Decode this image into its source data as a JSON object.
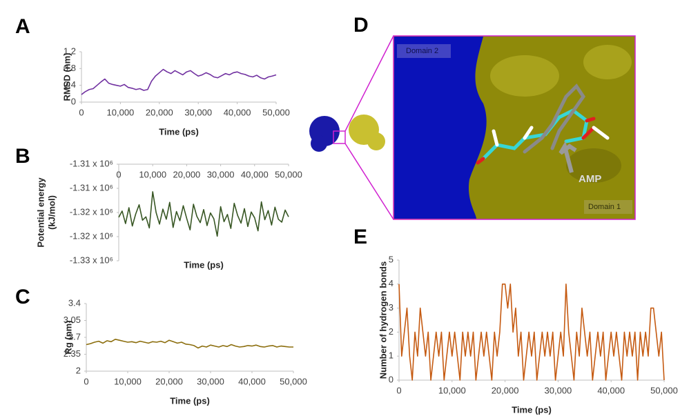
{
  "chart_data": [
    {
      "type": "line",
      "panel_label": "A",
      "ylabel": [
        "RMSD (nm)"
      ],
      "xlabel": "Time (ps)",
      "color": "#7030a0",
      "xlim": [
        0,
        50000
      ],
      "ylim": [
        0,
        1.2
      ],
      "yticks": [
        0,
        0.4,
        0.8,
        1.2
      ],
      "xticks": [
        0,
        {
          "value": 10000,
          "label": "10,000"
        },
        {
          "value": 20000,
          "label": "20,000"
        },
        {
          "value": 30000,
          "label": "30,000"
        },
        {
          "value": 40000,
          "label": "40,000"
        },
        {
          "value": 50000,
          "label": "50,000"
        }
      ],
      "x": [
        0,
        1000,
        2000,
        3000,
        4000,
        5000,
        6000,
        7000,
        8000,
        9000,
        10000,
        11000,
        12000,
        13000,
        14000,
        15000,
        16000,
        17000,
        18000,
        19000,
        20000,
        21000,
        22000,
        23000,
        24000,
        25000,
        26000,
        27000,
        28000,
        29000,
        30000,
        31000,
        32000,
        33000,
        34000,
        35000,
        36000,
        37000,
        38000,
        39000,
        40000,
        41000,
        42000,
        43000,
        44000,
        45000,
        46000,
        47000,
        48000,
        49000,
        50000
      ],
      "values": [
        0.18,
        0.25,
        0.3,
        0.32,
        0.4,
        0.48,
        0.55,
        0.45,
        0.42,
        0.4,
        0.38,
        0.42,
        0.35,
        0.33,
        0.3,
        0.32,
        0.28,
        0.3,
        0.5,
        0.62,
        0.7,
        0.78,
        0.72,
        0.68,
        0.75,
        0.7,
        0.65,
        0.72,
        0.75,
        0.68,
        0.62,
        0.65,
        0.7,
        0.66,
        0.6,
        0.58,
        0.63,
        0.68,
        0.65,
        0.7,
        0.72,
        0.68,
        0.66,
        0.62,
        0.6,
        0.64,
        0.58,
        0.55,
        0.6,
        0.62,
        0.65
      ]
    },
    {
      "type": "line",
      "panel_label": "B",
      "ylabel": [
        "Potential energy",
        "(kJ/mol)"
      ],
      "xlabel": "Time (ps)",
      "color": "#375623",
      "xlim": [
        0,
        50000
      ],
      "ylim": [
        -1327500,
        -1307500
      ],
      "yticks": [
        {
          "value": -1307500,
          "label": "-1.31 x 10⁶"
        },
        {
          "value": -1312500,
          "label": "-1.31 x 10⁶"
        },
        {
          "value": -1317500,
          "label": "-1.32 x 10⁶"
        },
        {
          "value": -1322500,
          "label": "-1.32 x 10⁶"
        },
        {
          "value": -1327500,
          "label": "-1.33 x 10⁶"
        }
      ],
      "xticks": [
        0,
        {
          "value": 10000,
          "label": "10,000"
        },
        {
          "value": 20000,
          "label": "20,000"
        },
        {
          "value": 30000,
          "label": "30,000"
        },
        {
          "value": 40000,
          "label": "40,000"
        },
        {
          "value": 50000,
          "label": "50,000"
        }
      ],
      "x": [
        0,
        1000,
        2000,
        3000,
        4000,
        5000,
        6000,
        7000,
        8000,
        9000,
        10000,
        11000,
        12000,
        13000,
        14000,
        15000,
        16000,
        17000,
        18000,
        19000,
        20000,
        21000,
        22000,
        23000,
        24000,
        25000,
        26000,
        27000,
        28000,
        29000,
        30000,
        31000,
        32000,
        33000,
        34000,
        35000,
        36000,
        37000,
        38000,
        39000,
        40000,
        41000,
        42000,
        43000,
        44000,
        45000,
        46000,
        47000,
        48000,
        49000,
        50000
      ],
      "values": [
        -1318500,
        -1317200,
        -1319800,
        -1316500,
        -1320300,
        -1317800,
        -1315900,
        -1319100,
        -1318400,
        -1320700,
        -1313200,
        -1317500,
        -1319900,
        -1316800,
        -1318900,
        -1315400,
        -1320600,
        -1317300,
        -1319200,
        -1316100,
        -1318700,
        -1321100,
        -1315800,
        -1318300,
        -1319600,
        -1316900,
        -1320200,
        -1317600,
        -1318800,
        -1322400,
        -1316300,
        -1319400,
        -1317900,
        -1320800,
        -1315600,
        -1318100,
        -1319700,
        -1316700,
        -1320400,
        -1317400,
        -1318600,
        -1321300,
        -1315300,
        -1319000,
        -1317100,
        -1320100,
        -1316400,
        -1318900,
        -1319500,
        -1317000,
        -1318400
      ]
    },
    {
      "type": "line",
      "panel_label": "C",
      "ylabel": [
        "Rg (nm)"
      ],
      "xlabel": "Time (ps)",
      "color": "#8b6d0c",
      "xlim": [
        0,
        50000
      ],
      "ylim": [
        2,
        3.4
      ],
      "yticks": [
        2,
        2.35,
        2.7,
        3.05,
        3.4
      ],
      "xticks": [
        0,
        {
          "value": 10000,
          "label": "10,000"
        },
        {
          "value": 20000,
          "label": "20,000"
        },
        {
          "value": 30000,
          "label": "30,000"
        },
        {
          "value": 40000,
          "label": "40,000"
        },
        {
          "value": 50000,
          "label": "50,000"
        }
      ],
      "x": [
        0,
        1000,
        2000,
        3000,
        4000,
        5000,
        6000,
        7000,
        8000,
        9000,
        10000,
        11000,
        12000,
        13000,
        14000,
        15000,
        16000,
        17000,
        18000,
        19000,
        20000,
        21000,
        22000,
        23000,
        24000,
        25000,
        26000,
        27000,
        28000,
        29000,
        30000,
        31000,
        32000,
        33000,
        34000,
        35000,
        36000,
        37000,
        38000,
        39000,
        40000,
        41000,
        42000,
        43000,
        44000,
        45000,
        46000,
        47000,
        48000,
        49000,
        50000
      ],
      "values": [
        2.55,
        2.57,
        2.6,
        2.62,
        2.58,
        2.63,
        2.61,
        2.66,
        2.64,
        2.62,
        2.6,
        2.61,
        2.59,
        2.62,
        2.6,
        2.58,
        2.61,
        2.6,
        2.62,
        2.59,
        2.64,
        2.61,
        2.58,
        2.6,
        2.56,
        2.55,
        2.53,
        2.48,
        2.52,
        2.5,
        2.54,
        2.52,
        2.5,
        2.53,
        2.51,
        2.55,
        2.52,
        2.5,
        2.51,
        2.53,
        2.52,
        2.54,
        2.51,
        2.5,
        2.52,
        2.53,
        2.5,
        2.52,
        2.51,
        2.5,
        2.5
      ]
    },
    {
      "type": "image",
      "panel_label": "D",
      "labels": [
        "Domain 2",
        "AMP",
        "Domain 1"
      ]
    },
    {
      "type": "line",
      "panel_label": "E",
      "ylabel": [
        "Number of hydrogen bonds"
      ],
      "xlabel": "Time (ps)",
      "color": "#c55a11",
      "xlim": [
        0,
        50000
      ],
      "ylim": [
        0,
        5
      ],
      "yticks": [
        0,
        1,
        2,
        3,
        4,
        5
      ],
      "xticks": [
        0,
        {
          "value": 10000,
          "label": "10,000"
        },
        {
          "value": 20000,
          "label": "20,000"
        },
        {
          "value": 30000,
          "label": "30,000"
        },
        {
          "value": 40000,
          "label": "40,000"
        },
        {
          "value": 50000,
          "label": "50,000"
        }
      ],
      "x": [
        0,
        500,
        1000,
        1500,
        2000,
        2500,
        3000,
        3500,
        4000,
        4500,
        5000,
        5500,
        6000,
        6500,
        7000,
        7500,
        8000,
        8500,
        9000,
        9500,
        10000,
        10500,
        11000,
        11500,
        12000,
        12500,
        13000,
        13500,
        14000,
        14500,
        15000,
        15500,
        16000,
        16500,
        17000,
        17500,
        18000,
        18500,
        19000,
        19500,
        20000,
        20500,
        21000,
        21500,
        22000,
        22500,
        23000,
        23500,
        24000,
        24500,
        25000,
        25500,
        26000,
        26500,
        27000,
        27500,
        28000,
        28500,
        29000,
        29500,
        30000,
        30500,
        31000,
        31500,
        32000,
        32500,
        33000,
        33500,
        34000,
        34500,
        35000,
        35500,
        36000,
        36500,
        37000,
        37500,
        38000,
        38500,
        39000,
        39500,
        40000,
        40500,
        41000,
        41500,
        42000,
        42500,
        43000,
        43500,
        44000,
        44500,
        45000,
        45500,
        46000,
        46500,
        47000,
        47500,
        48000,
        48500,
        49000,
        49500,
        50000
      ],
      "values": [
        4,
        1,
        2,
        3,
        1,
        0,
        2,
        1,
        3,
        2,
        1,
        2,
        0,
        1,
        2,
        1,
        2,
        0,
        1,
        2,
        1,
        2,
        1,
        0,
        2,
        1,
        2,
        1,
        2,
        0,
        1,
        2,
        1,
        2,
        1,
        0,
        2,
        1,
        2,
        4,
        4,
        3,
        4,
        2,
        3,
        1,
        2,
        0,
        1,
        2,
        1,
        2,
        0,
        1,
        2,
        1,
        2,
        1,
        2,
        0,
        1,
        2,
        1,
        4,
        2,
        1,
        0,
        2,
        1,
        3,
        2,
        1,
        2,
        0,
        1,
        2,
        1,
        2,
        0,
        1,
        2,
        1,
        2,
        1,
        0,
        2,
        1,
        2,
        1,
        2,
        0,
        2,
        1,
        2,
        1,
        3,
        3,
        2,
        1,
        2,
        0
      ]
    }
  ]
}
